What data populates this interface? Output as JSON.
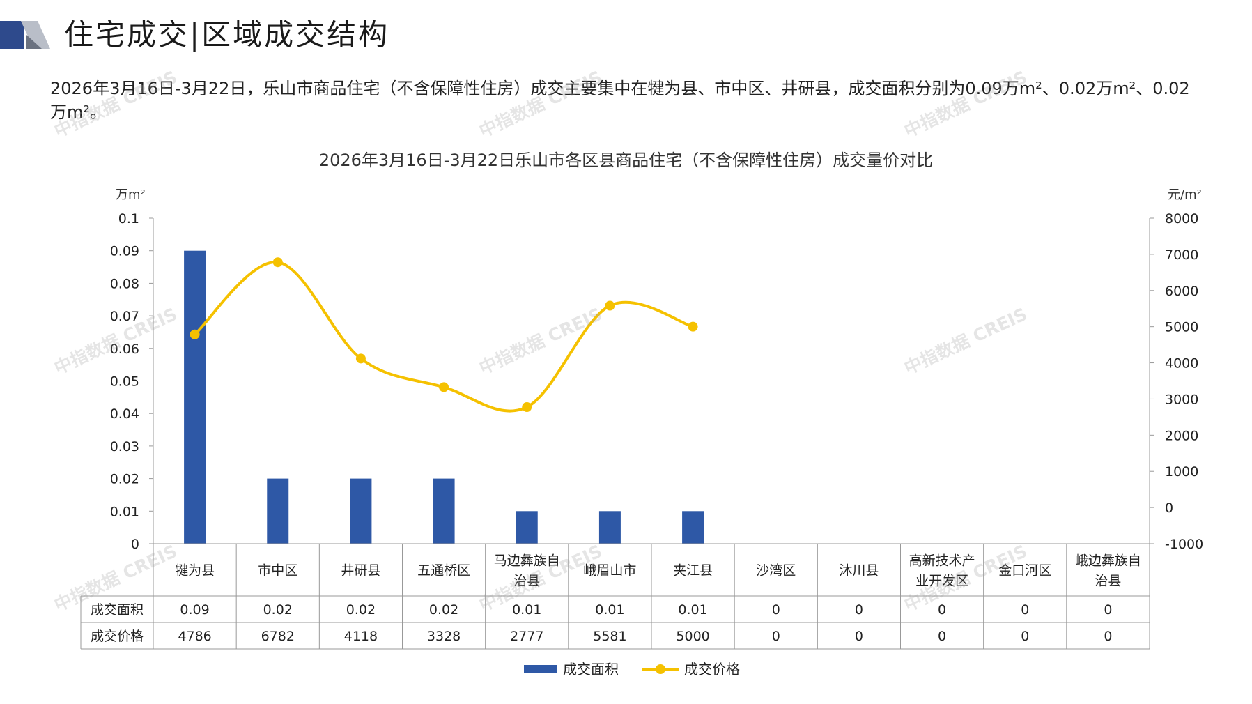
{
  "header": {
    "title": "住宅成交|区域成交结构",
    "summary": "2026年3月16日-3月22日，乐山市商品住宅（不含保障性住房）成交主要集中在犍为县、市中区、井研县，成交面积分别为0.09万m²、0.02万m²、0.02万m²。"
  },
  "watermark": "中指数据 CREIS",
  "colors": {
    "area": "#2e58a6",
    "price": "#f5c100",
    "accent_dark": "#2e4a8c",
    "accent_grey": "#9aa0aa"
  },
  "chart_data": {
    "type": "bar",
    "title": "2026年3月16日-3月22日乐山市各区县商品住宅（不含保障性住房）成交量价对比",
    "categories": [
      "犍为县",
      "市中区",
      "井研县",
      "五通桥区",
      "马边彝族自治县",
      "峨眉山市",
      "夹江县",
      "沙湾区",
      "沐川县",
      "高新技术产业开发区",
      "金口河区",
      "峨边彝族自治县"
    ],
    "category_lines": [
      [
        "犍为县"
      ],
      [
        "市中区"
      ],
      [
        "井研县"
      ],
      [
        "五通桥区"
      ],
      [
        "马边彝族自",
        "治县"
      ],
      [
        "峨眉山市"
      ],
      [
        "夹江县"
      ],
      [
        "沙湾区"
      ],
      [
        "沐川县"
      ],
      [
        "高新技术产",
        "业开发区"
      ],
      [
        "金口河区"
      ],
      [
        "峨边彝族自",
        "治县"
      ]
    ],
    "series": [
      {
        "name": "成交面积",
        "type": "bar",
        "axis": "left",
        "values": [
          0.09,
          0.02,
          0.02,
          0.02,
          0.01,
          0.01,
          0.01,
          0,
          0,
          0,
          0,
          0
        ],
        "labels": [
          "0.09",
          "0.02",
          "0.02",
          "0.02",
          "0.01",
          "0.01",
          "0.01",
          "0",
          "0",
          "0",
          "0",
          "0"
        ]
      },
      {
        "name": "成交价格",
        "type": "line",
        "axis": "right",
        "values": [
          4786,
          6782,
          4118,
          3328,
          2777,
          5581,
          5000,
          0,
          0,
          0,
          0,
          0
        ],
        "labels": [
          "4786",
          "6782",
          "4118",
          "3328",
          "2777",
          "5581",
          "5000",
          "0",
          "0",
          "0",
          "0",
          "0"
        ]
      }
    ],
    "y_left": {
      "unit": "万m²",
      "min": 0,
      "max": 0.1,
      "ticks": [
        "0",
        "0.01",
        "0.02",
        "0.03",
        "0.04",
        "0.05",
        "0.06",
        "0.07",
        "0.08",
        "0.09",
        "0.1"
      ]
    },
    "y_right": {
      "unit": "元/m²",
      "min": -1000,
      "max": 8000,
      "ticks": [
        "-1000",
        "0",
        "1000",
        "2000",
        "3000",
        "4000",
        "5000",
        "6000",
        "7000",
        "8000"
      ]
    },
    "legend_position": "bottom"
  }
}
